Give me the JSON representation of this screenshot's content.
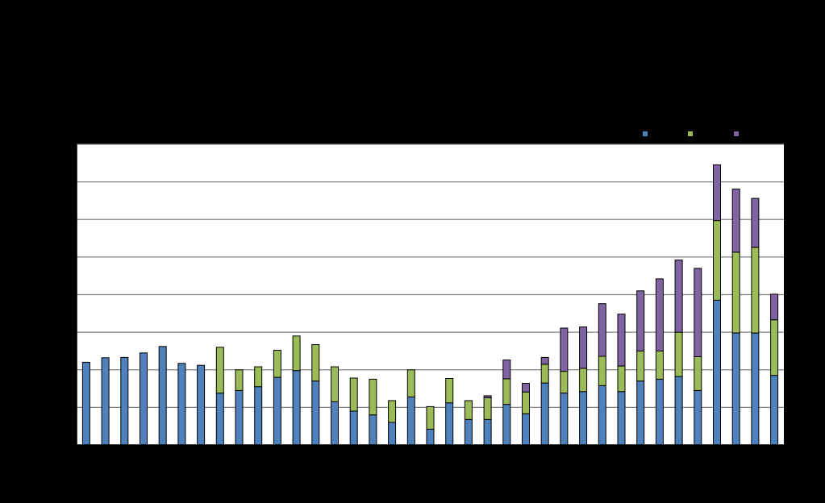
{
  "chart_data": {
    "type": "bar",
    "stacked": true,
    "title": "",
    "xlabel": "",
    "ylabel": "",
    "grid": true,
    "legend_position": "top-right",
    "ylim": [
      0,
      8
    ],
    "colors": {
      "background": "#000000",
      "plot_area": "#ffffff",
      "gridline": "#808080",
      "outline": "#000000"
    },
    "series": [
      {
        "color": "#4f81bd",
        "values": [
          2.2,
          2.32,
          2.33,
          2.45,
          2.62,
          2.17,
          2.12,
          1.38,
          1.45,
          1.55,
          1.8,
          1.98,
          1.7,
          1.15,
          0.9,
          0.8,
          0.6,
          1.28,
          0.42,
          1.12,
          0.68,
          0.68,
          1.08,
          0.83,
          1.65,
          1.38,
          1.42,
          1.58,
          1.42,
          1.7,
          1.75,
          1.82,
          1.45,
          3.85,
          2.98,
          2.98,
          1.85
        ]
      },
      {
        "color": "#9bbb59",
        "values": [
          0,
          0,
          0,
          0,
          0,
          0,
          0,
          1.22,
          0.55,
          0.53,
          0.72,
          0.92,
          0.97,
          0.93,
          0.88,
          0.95,
          0.58,
          0.72,
          0.6,
          0.65,
          0.5,
          0.58,
          0.68,
          0.58,
          0.5,
          0.58,
          0.62,
          0.78,
          0.68,
          0.8,
          0.75,
          1.18,
          0.9,
          2.12,
          2.15,
          2.28,
          1.48
        ]
      },
      {
        "color": "#8064a2",
        "values": [
          0,
          0,
          0,
          0,
          0,
          0,
          0,
          0,
          0,
          0,
          0,
          0,
          0,
          0,
          0,
          0,
          0,
          0,
          0,
          0,
          0,
          0.05,
          0.5,
          0.23,
          0.18,
          1.15,
          1.1,
          1.4,
          1.38,
          1.6,
          1.92,
          1.92,
          2.35,
          1.48,
          1.68,
          1.3,
          0.68
        ]
      }
    ]
  }
}
